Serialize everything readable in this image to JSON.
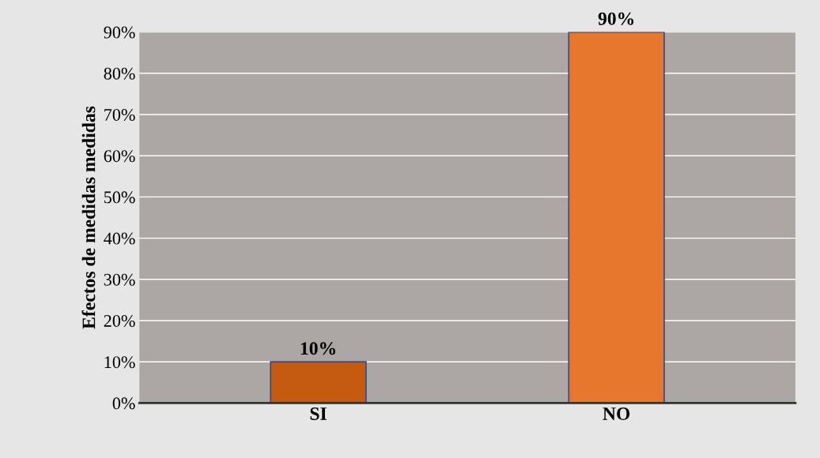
{
  "chart_data": {
    "type": "bar",
    "ylabel": "Efectos de medidas medidas",
    "categories": [
      "SI",
      "NO"
    ],
    "values": [
      10,
      90
    ],
    "colors": [
      "#c55a11",
      "#e8772e"
    ],
    "value_labels": [
      "10%",
      "90%"
    ],
    "ylim": [
      0,
      90
    ],
    "yticks": [
      {
        "value": 0,
        "label": "0%"
      },
      {
        "value": 10,
        "label": "10%"
      },
      {
        "value": 20,
        "label": "20%"
      },
      {
        "value": 30,
        "label": "30%"
      },
      {
        "value": 40,
        "label": "40%"
      },
      {
        "value": 50,
        "label": "50%"
      },
      {
        "value": 60,
        "label": "60%"
      },
      {
        "value": 70,
        "label": "70%"
      },
      {
        "value": 80,
        "label": "80%"
      },
      {
        "value": 90,
        "label": "90%"
      }
    ],
    "grid": "y"
  }
}
